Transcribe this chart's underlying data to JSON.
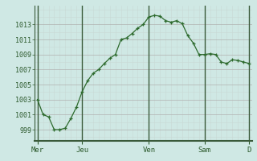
{
  "background_color": "#cfe8e4",
  "grid_color_major": "#b0b0b0",
  "grid_color_minor": "#c8d8d4",
  "line_color": "#2d6a2d",
  "marker_color": "#2d6a2d",
  "axis_label_color": "#2d5a2d",
  "x_tick_labels": [
    "Mer",
    "Jeu",
    "Ven",
    "Sam",
    "D"
  ],
  "x_tick_positions": [
    0,
    8,
    20,
    30,
    38
  ],
  "ylim": [
    997.5,
    1015.5
  ],
  "yticks": [
    999,
    1001,
    1003,
    1005,
    1007,
    1009,
    1011,
    1013
  ],
  "values": [
    1003.0,
    1001.0,
    1000.7,
    999.0,
    999.0,
    999.2,
    1000.5,
    1002.0,
    1004.0,
    1005.5,
    1006.5,
    1007.0,
    1007.8,
    1008.5,
    1009.0,
    1011.0,
    1011.2,
    1011.8,
    1012.5,
    1013.0,
    1014.0,
    1014.2,
    1014.1,
    1013.5,
    1013.3,
    1013.5,
    1013.1,
    1011.5,
    1010.5,
    1009.0,
    1009.0,
    1009.1,
    1009.0,
    1008.0,
    1007.8,
    1008.3,
    1008.2,
    1008.0,
    1007.8
  ],
  "vline_positions": [
    0,
    8,
    20,
    30,
    38
  ],
  "vline_color": "#3a5a3a",
  "spine_color": "#3a5a3a"
}
